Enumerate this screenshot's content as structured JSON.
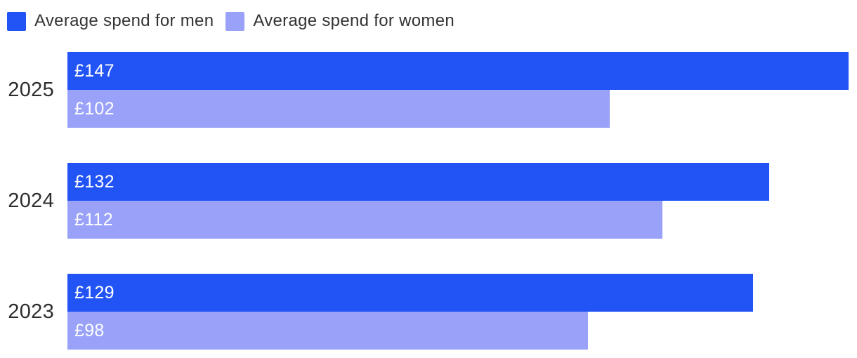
{
  "legend": {
    "position": "top",
    "items": [
      {
        "label": "Average spend for men",
        "color": "#2253f5"
      },
      {
        "label": "Average spend for women",
        "color": "#99a2f8"
      }
    ]
  },
  "chart_data": {
    "type": "bar",
    "orientation": "horizontal",
    "title": "",
    "xlabel": "",
    "ylabel": "",
    "grid": false,
    "legend_position": "top",
    "background": "#ffffff",
    "categories": [
      "2025",
      "2024",
      "2023"
    ],
    "series": [
      {
        "name": "Average spend for men",
        "color": "#2253f5",
        "values": [
          147,
          132,
          129
        ]
      },
      {
        "name": "Average spend for women",
        "color": "#99a2f8",
        "values": [
          102,
          112,
          98
        ]
      }
    ],
    "value_prefix": "£",
    "value_labels": [
      [
        "£147",
        "£102"
      ],
      [
        "£132",
        "£112"
      ],
      [
        "£129",
        "£98"
      ]
    ],
    "xmax": 147,
    "value_label_color": "#ffffff",
    "category_label_color": "#2d2d2d"
  }
}
